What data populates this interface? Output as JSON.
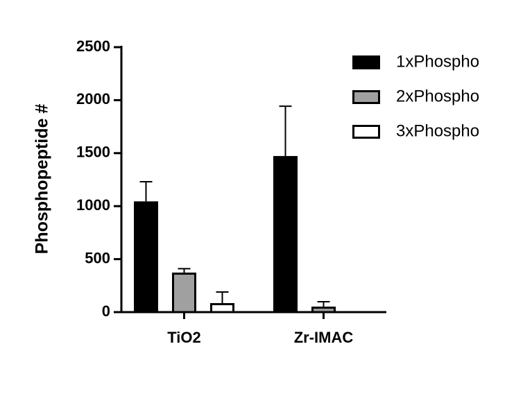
{
  "chart_data": {
    "type": "bar",
    "y_label": "Phosphopeptide #",
    "categories": [
      "TiO2",
      "Zr-IMAC"
    ],
    "series": [
      {
        "name": "1xPhospho",
        "color": "#000000",
        "values": [
          1045,
          1473
        ],
        "errors": [
          185,
          470
        ]
      },
      {
        "name": "2xPhospho",
        "color": "#a0a0a0",
        "values": [
          373,
          52
        ],
        "errors": [
          37,
          46
        ]
      },
      {
        "name": "3xPhospho",
        "color": "#ffffff",
        "values": [
          85,
          0
        ],
        "errors": [
          105,
          0
        ]
      }
    ],
    "ylim": [
      0,
      2500
    ],
    "yticks": [
      0,
      500,
      1000,
      1500,
      2000,
      2500
    ],
    "legend": "upper right"
  }
}
